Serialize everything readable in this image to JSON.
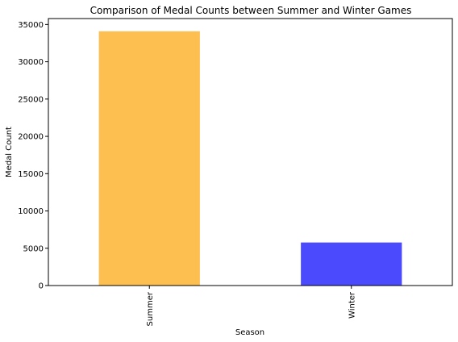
{
  "chart_data": {
    "type": "bar",
    "title": "Comparison of Medal Counts between Summer and Winter Games",
    "xlabel": "Season",
    "ylabel": "Medal Count",
    "categories": [
      "Summer",
      "Winter"
    ],
    "values": [
      34088,
      5770
    ],
    "colors": [
      "#fdbf50",
      "#4b4bfd"
    ],
    "ylim": [
      0,
      35795
    ],
    "yticks": [
      0,
      5000,
      10000,
      15000,
      20000,
      25000,
      30000,
      35000
    ],
    "grid": false,
    "legend": "none"
  }
}
